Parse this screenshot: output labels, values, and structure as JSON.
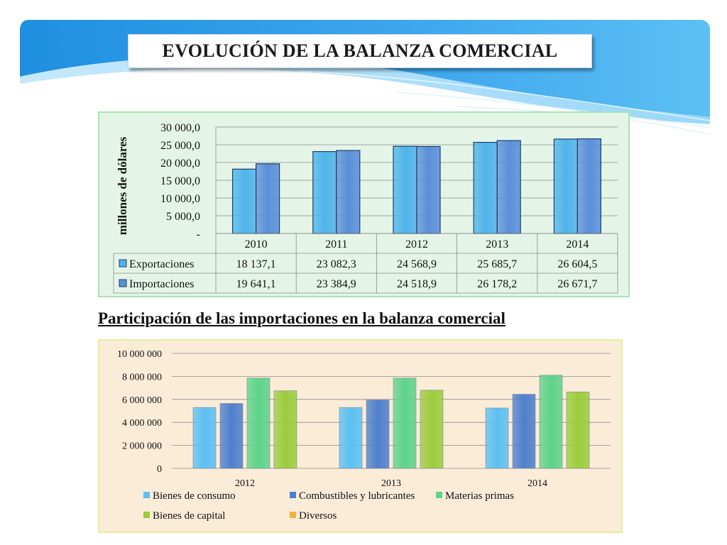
{
  "slide_title": "EVOLUCIÓN DE LA BALANZA COMERCIAL",
  "subtitle": "Participación de las importaciones en la balanza comercial",
  "colors": {
    "exportaciones": "#4fb4ea",
    "importaciones": "#5b8fd8",
    "bienes_de_consumo": "#5cc0f2",
    "combustibles": "#4f7fcc",
    "materias_primas": "#5ed38a",
    "bienes_de_capital": "#9ccc3e",
    "diversos": "#f5b33c"
  },
  "chart_data": [
    {
      "type": "bar",
      "title": "",
      "xlabel": "",
      "ylabel": "millones de dólares",
      "ylim": [
        0,
        30000
      ],
      "yticks": [
        "-",
        "5 000,0",
        "10 000,0",
        "15 000,0",
        "20 000,0",
        "25 000,0",
        "30 000,0"
      ],
      "grid": true,
      "categories": [
        "2010",
        "2011",
        "2012",
        "2013",
        "2014"
      ],
      "series": [
        {
          "name": "Exportaciones",
          "values": [
            18137.1,
            23082.3,
            24568.9,
            25685.7,
            26604.5
          ],
          "labels": [
            "18 137,1",
            "23 082,3",
            "24 568,9",
            "25 685,7",
            "26 604,5"
          ]
        },
        {
          "name": "Importaciones",
          "values": [
            19641.1,
            23384.9,
            24518.9,
            26178.2,
            26671.7
          ],
          "labels": [
            "19 641,1",
            "23 384,9",
            "24 518,9",
            "26 178,2",
            "26 671,7"
          ]
        }
      ],
      "data_table": true
    },
    {
      "type": "bar",
      "title": "",
      "xlabel": "",
      "ylabel": "",
      "ylim": [
        0,
        10000000
      ],
      "yticks": [
        "0",
        "2 000 000",
        "4 000 000",
        "6 000 000",
        "8 000 000",
        "10 000 000"
      ],
      "grid": true,
      "legend": "bottom",
      "categories": [
        "2012",
        "2013",
        "2014"
      ],
      "series": [
        {
          "name": "Bienes de consumo",
          "values": [
            5300000,
            5300000,
            5250000
          ]
        },
        {
          "name": "Combustibles y lubricantes",
          "values": [
            5650000,
            5950000,
            6450000
          ]
        },
        {
          "name": "Materias primas",
          "values": [
            7850000,
            7850000,
            8100000
          ]
        },
        {
          "name": "Bienes de capital",
          "values": [
            6750000,
            6800000,
            6650000
          ]
        },
        {
          "name": "Diversos",
          "values": [
            0,
            0,
            0
          ]
        }
      ]
    }
  ]
}
